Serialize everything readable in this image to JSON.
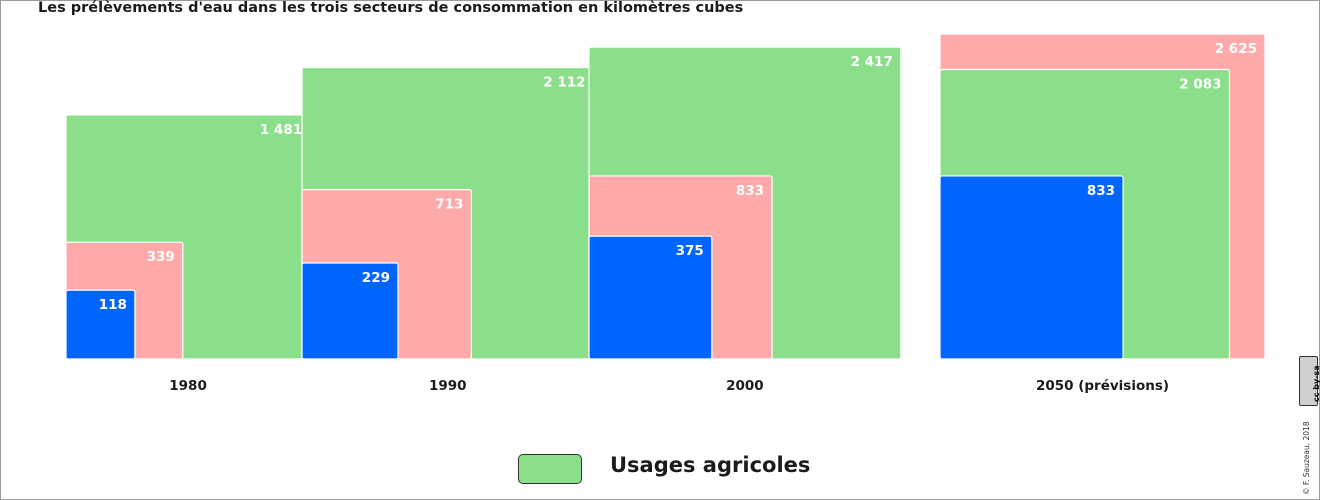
{
  "title": "Les prélèvements d'eau dans les trois secteurs de consommation en kilomètres cubes",
  "legend": [
    {
      "label": "Usages agricoles",
      "color": "#8bdf8b"
    }
  ],
  "credit": "© F. Sauzeau, 2018",
  "license_badge": "cc by-sa",
  "colors": {
    "green": "#8bdf8b",
    "pink": "#ffaaaa",
    "blue": "#0066ff"
  },
  "chart_data": {
    "type": "proportional-squares",
    "categories": [
      "1980",
      "1990",
      "2000",
      "2050 (prévisions)"
    ],
    "groups": [
      {
        "category": "1980",
        "values": [
          {
            "value": 1481,
            "label": "1 481",
            "color": "#8bdf8b"
          },
          {
            "value": 339,
            "label": "339",
            "color": "#ffaaaa"
          },
          {
            "value": 118,
            "label": "118",
            "color": "#0066ff"
          }
        ]
      },
      {
        "category": "1990",
        "values": [
          {
            "value": 2112,
            "label": "2 112",
            "color": "#8bdf8b"
          },
          {
            "value": 713,
            "label": "713",
            "color": "#ffaaaa"
          },
          {
            "value": 229,
            "label": "229",
            "color": "#0066ff"
          }
        ]
      },
      {
        "category": "2000",
        "values": [
          {
            "value": 2417,
            "label": "2 417",
            "color": "#8bdf8b"
          },
          {
            "value": 833,
            "label": "833",
            "color": "#ffaaaa"
          },
          {
            "value": 375,
            "label": "375",
            "color": "#0066ff"
          }
        ]
      },
      {
        "category": "2050 (prévisions)",
        "values": [
          {
            "value": 2625,
            "label": "2 625",
            "color": "#ffaaaa"
          },
          {
            "value": 2083,
            "label": "2 083",
            "color": "#8bdf8b"
          },
          {
            "value": 833,
            "label": "833",
            "color": "#0066ff"
          }
        ]
      }
    ]
  }
}
